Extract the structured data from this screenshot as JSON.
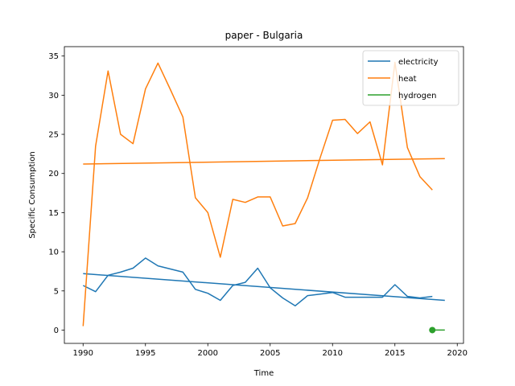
{
  "chart_data": {
    "type": "line",
    "title": "paper - Bulgaria",
    "xlabel": "Time",
    "ylabel": "Specific Consumption",
    "xlim": [
      1988.5,
      2020.5
    ],
    "ylim": [
      -1.7,
      36.2
    ],
    "xticks": [
      1990,
      1995,
      2000,
      2005,
      2010,
      2015,
      2020
    ],
    "yticks": [
      0,
      5,
      10,
      15,
      20,
      25,
      30,
      35
    ],
    "grid": false,
    "legend_position": "top-right",
    "series": [
      {
        "name": "electricity",
        "color": "#1f77b4",
        "x": [
          1990,
          1991,
          1992,
          1993,
          1994,
          1995,
          1996,
          1997,
          1998,
          1999,
          2000,
          2001,
          2002,
          2003,
          2004,
          2005,
          2006,
          2007,
          2008,
          2009,
          2010,
          2011,
          2012,
          2013,
          2014,
          2015,
          2016,
          2017,
          2018
        ],
        "y": [
          5.7,
          4.9,
          7.0,
          7.4,
          7.9,
          9.2,
          8.2,
          7.8,
          7.4,
          5.2,
          4.7,
          3.8,
          5.7,
          6.1,
          7.9,
          5.4,
          4.1,
          3.1,
          4.4,
          4.6,
          4.8,
          4.2,
          4.2,
          4.2,
          4.2,
          5.8,
          4.3,
          4.1,
          4.3
        ],
        "trend": {
          "x": [
            1990,
            2019
          ],
          "y": [
            7.2,
            3.8
          ]
        }
      },
      {
        "name": "heat",
        "color": "#ff7f0e",
        "x": [
          1990,
          1991,
          1992,
          1993,
          1994,
          1995,
          1996,
          1997,
          1998,
          1999,
          2000,
          2001,
          2002,
          2003,
          2004,
          2005,
          2006,
          2007,
          2008,
          2009,
          2010,
          2011,
          2012,
          2013,
          2014,
          2015,
          2016,
          2017,
          2018
        ],
        "y": [
          0.5,
          23.5,
          33.1,
          25.0,
          23.8,
          30.8,
          34.1,
          30.7,
          27.2,
          16.9,
          15.0,
          9.3,
          16.7,
          16.3,
          17.0,
          17.0,
          13.3,
          13.6,
          16.9,
          22.0,
          26.8,
          26.9,
          25.1,
          26.6,
          21.1,
          34.2,
          23.3,
          19.6,
          17.9
        ],
        "trend": {
          "x": [
            1990,
            2019
          ],
          "y": [
            21.2,
            21.9
          ]
        }
      },
      {
        "name": "hydrogen",
        "color": "#2ca02c",
        "x": [
          2018
        ],
        "y": [
          0.0
        ],
        "trend": {
          "x": [
            2018,
            2019
          ],
          "y": [
            0.0,
            0.0
          ]
        }
      }
    ]
  }
}
